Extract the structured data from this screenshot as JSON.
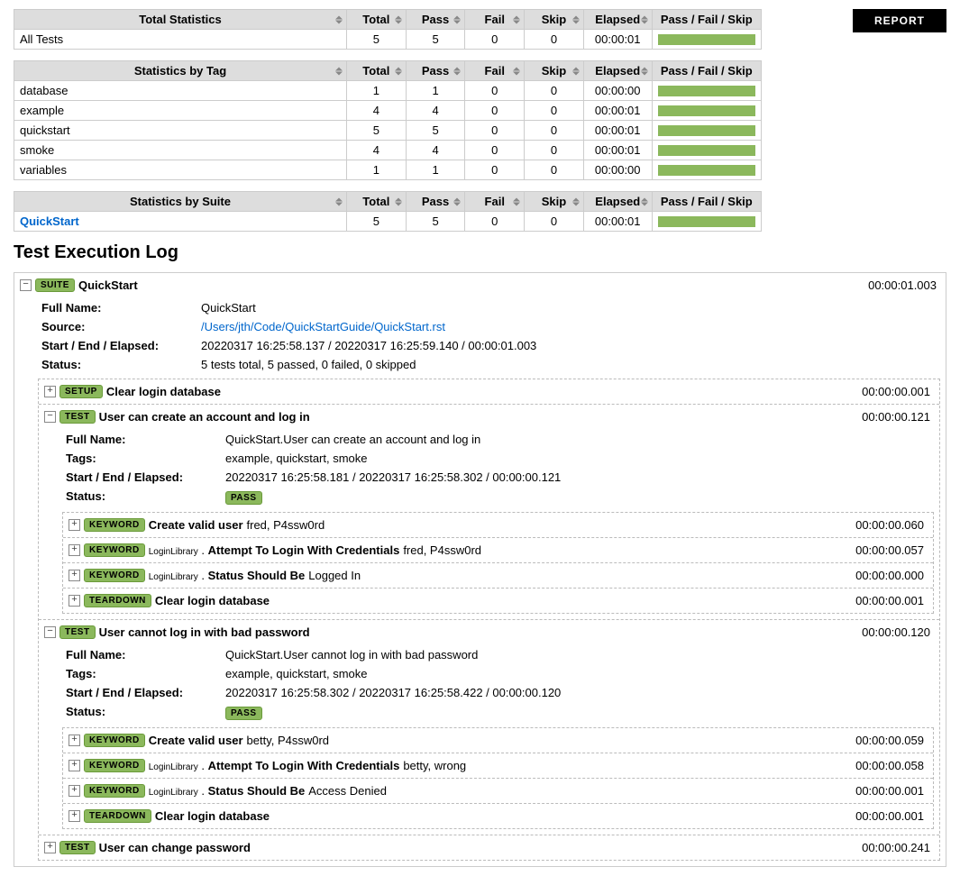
{
  "report_button": "REPORT",
  "colors": {
    "pass_bar": "#8bb85c",
    "badge_bg": "#8bb85c",
    "badge_border": "#6a9a3a",
    "link": "#0066cc"
  },
  "stats_headers": {
    "total": "Total",
    "pass": "Pass",
    "fail": "Fail",
    "skip": "Skip",
    "elapsed": "Elapsed",
    "pfs": "Pass / Fail / Skip"
  },
  "total_stats": {
    "title": "Total Statistics",
    "rows": [
      {
        "name": "All Tests",
        "total": 5,
        "pass": 5,
        "fail": 0,
        "skip": 0,
        "elapsed": "00:00:01",
        "link": false
      }
    ]
  },
  "tag_stats": {
    "title": "Statistics by Tag",
    "rows": [
      {
        "name": "database",
        "total": 1,
        "pass": 1,
        "fail": 0,
        "skip": 0,
        "elapsed": "00:00:00",
        "link": false
      },
      {
        "name": "example",
        "total": 4,
        "pass": 4,
        "fail": 0,
        "skip": 0,
        "elapsed": "00:00:01",
        "link": false
      },
      {
        "name": "quickstart",
        "total": 5,
        "pass": 5,
        "fail": 0,
        "skip": 0,
        "elapsed": "00:00:01",
        "link": false
      },
      {
        "name": "smoke",
        "total": 4,
        "pass": 4,
        "fail": 0,
        "skip": 0,
        "elapsed": "00:00:01",
        "link": false
      },
      {
        "name": "variables",
        "total": 1,
        "pass": 1,
        "fail": 0,
        "skip": 0,
        "elapsed": "00:00:00",
        "link": false
      }
    ]
  },
  "suite_stats": {
    "title": "Statistics by Suite",
    "rows": [
      {
        "name": "QuickStart",
        "total": 5,
        "pass": 5,
        "fail": 0,
        "skip": 0,
        "elapsed": "00:00:01",
        "link": true
      }
    ]
  },
  "log_title": "Test Execution Log",
  "meta_labels": {
    "full_name": "Full Name:",
    "source": "Source:",
    "start_end": "Start / End / Elapsed:",
    "status": "Status:",
    "tags": "Tags:"
  },
  "suite": {
    "badge": "SUITE",
    "name": "QuickStart",
    "elapsed": "00:00:01.003",
    "full_name": "QuickStart",
    "source": "/Users/jth/Code/QuickStartGuide/QuickStart.rst",
    "start_end": "20220317 16:25:58.137 / 20220317 16:25:59.140 / 00:00:01.003",
    "status": "5 tests total, 5 passed, 0 failed, 0 skipped",
    "setup": {
      "badge": "SETUP",
      "name": "Clear login database",
      "elapsed": "00:00:00.001"
    },
    "tests": [
      {
        "badge": "TEST",
        "name": "User can create an account and log in",
        "elapsed": "00:00:00.121",
        "expanded": true,
        "full_name": "QuickStart.User can create an account and log in",
        "tags": "example, quickstart, smoke",
        "start_end": "20220317 16:25:58.181 / 20220317 16:25:58.302 / 00:00:00.121",
        "status_badge": "PASS",
        "keywords": [
          {
            "badge": "KEYWORD",
            "lib": "",
            "name": "Create valid user",
            "args": "fred, P4ssw0rd",
            "elapsed": "00:00:00.060"
          },
          {
            "badge": "KEYWORD",
            "lib": "LoginLibrary .",
            "name": "Attempt To Login With Credentials",
            "args": "fred, P4ssw0rd",
            "elapsed": "00:00:00.057"
          },
          {
            "badge": "KEYWORD",
            "lib": "LoginLibrary .",
            "name": "Status Should Be",
            "args": "Logged In",
            "elapsed": "00:00:00.000"
          }
        ],
        "teardown": {
          "badge": "TEARDOWN",
          "name": "Clear login database",
          "elapsed": "00:00:00.001"
        }
      },
      {
        "badge": "TEST",
        "name": "User cannot log in with bad password",
        "elapsed": "00:00:00.120",
        "expanded": true,
        "full_name": "QuickStart.User cannot log in with bad password",
        "tags": "example, quickstart, smoke",
        "start_end": "20220317 16:25:58.302 / 20220317 16:25:58.422 / 00:00:00.120",
        "status_badge": "PASS",
        "keywords": [
          {
            "badge": "KEYWORD",
            "lib": "",
            "name": "Create valid user",
            "args": "betty, P4ssw0rd",
            "elapsed": "00:00:00.059"
          },
          {
            "badge": "KEYWORD",
            "lib": "LoginLibrary .",
            "name": "Attempt To Login With Credentials",
            "args": "betty, wrong",
            "elapsed": "00:00:00.058"
          },
          {
            "badge": "KEYWORD",
            "lib": "LoginLibrary .",
            "name": "Status Should Be",
            "args": "Access Denied",
            "elapsed": "00:00:00.001"
          }
        ],
        "teardown": {
          "badge": "TEARDOWN",
          "name": "Clear login database",
          "elapsed": "00:00:00.001"
        }
      },
      {
        "badge": "TEST",
        "name": "User can change password",
        "elapsed": "00:00:00.241",
        "expanded": false
      }
    ]
  }
}
